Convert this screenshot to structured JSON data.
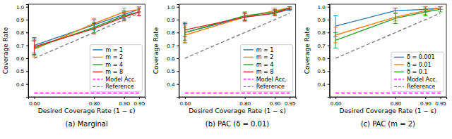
{
  "chart_data": [
    {
      "type": "line",
      "title": "(a) Marginal",
      "x_label": "Desired Coverage Rate (1 − ε)",
      "y_label": "Coverage Rate",
      "x": [
        0.6,
        0.8,
        0.9,
        0.95
      ],
      "xlim": [
        0.58,
        0.97
      ],
      "xticks": [
        {
          "value": 0.6,
          "label": "0.60"
        },
        {
          "value": 0.8,
          "label": "0.80"
        },
        {
          "value": 0.9,
          "label": "0.90"
        },
        {
          "value": 0.95,
          "label": "0.95"
        }
      ],
      "ylim": [
        0.3,
        1.02
      ],
      "yticks": [
        0.4,
        0.5,
        0.6,
        0.7,
        0.8,
        0.9,
        {
          "value": 1,
          "label": "1.0"
        }
      ],
      "legend": "lower right",
      "series": [
        {
          "name": "m = 1",
          "color": "#1f77b4",
          "values": [
            0.7,
            0.86,
            0.94,
            0.98
          ],
          "errors": [
            0.06,
            0.04,
            0.03,
            0.02
          ]
        },
        {
          "name": "m = 2",
          "color": "#ff7f0e",
          "values": [
            0.67,
            0.87,
            0.96,
            0.98
          ],
          "errors": [
            0.06,
            0.04,
            0.03,
            0.02
          ]
        },
        {
          "name": "m = 4",
          "color": "#2ca02c",
          "values": [
            0.68,
            0.84,
            0.93,
            0.96
          ],
          "errors": [
            0.06,
            0.04,
            0.03,
            0.03
          ]
        },
        {
          "name": "m = 8",
          "color": "#d62728",
          "values": [
            0.69,
            0.83,
            0.92,
            0.96
          ],
          "errors": [
            0.06,
            0.04,
            0.03,
            0.03
          ]
        },
        {
          "name": "Model Acc.",
          "color": "#ff00ff",
          "values": [
            0.33,
            0.33,
            0.33,
            0.33
          ],
          "line_style": "dashed"
        },
        {
          "name": "Reference",
          "color": "#808080",
          "values": [
            0.6,
            0.8,
            0.9,
            0.95
          ],
          "line_style": "dashed"
        }
      ]
    },
    {
      "type": "line",
      "title": "(b) PAC (δ = 0.01)",
      "x_label": "Desired Coverage Rate (1 − ε)",
      "y_label": "Coverage Rate",
      "x": [
        0.6,
        0.8,
        0.9,
        0.95
      ],
      "xlim": [
        0.58,
        0.97
      ],
      "xticks": [
        {
          "value": 0.6,
          "label": "0.60"
        },
        {
          "value": 0.8,
          "label": "0.80"
        },
        {
          "value": 0.9,
          "label": "0.90"
        },
        {
          "value": 0.95,
          "label": "0.95"
        }
      ],
      "ylim": [
        0.3,
        1.02
      ],
      "yticks": [
        0.4,
        0.5,
        0.6,
        0.7,
        0.8,
        0.9,
        {
          "value": 1,
          "label": "1.0"
        }
      ],
      "legend": "lower right",
      "series": [
        {
          "name": "m = 1",
          "color": "#1f77b4",
          "values": [
            0.8,
            0.92,
            0.95,
            0.98
          ],
          "errors": [
            0.08,
            0.03,
            0.02,
            0.01
          ]
        },
        {
          "name": "m = 2",
          "color": "#ff7f0e",
          "values": [
            0.78,
            0.92,
            0.97,
            0.99
          ],
          "errors": [
            0.06,
            0.03,
            0.02,
            0.01
          ]
        },
        {
          "name": "m = 4",
          "color": "#2ca02c",
          "values": [
            0.8,
            0.93,
            0.96,
            0.99
          ],
          "errors": [
            0.06,
            0.03,
            0.02,
            0.01
          ]
        },
        {
          "name": "m = 8",
          "color": "#d62728",
          "values": [
            0.82,
            0.92,
            0.95,
            0.99
          ],
          "errors": [
            0.05,
            0.03,
            0.02,
            0.01
          ]
        },
        {
          "name": "Model Acc.",
          "color": "#ff00ff",
          "values": [
            0.33,
            0.33,
            0.33,
            0.33
          ],
          "line_style": "dashed"
        },
        {
          "name": "Reference",
          "color": "#808080",
          "values": [
            0.6,
            0.8,
            0.9,
            0.95
          ],
          "line_style": "dashed"
        }
      ]
    },
    {
      "type": "line",
      "title": "(c) PAC (m = 2)",
      "x_label": "Desired Coverage Rate (1 − ε)",
      "y_label": "Coverage Rate",
      "x": [
        0.6,
        0.8,
        0.9,
        0.95
      ],
      "xlim": [
        0.58,
        0.97
      ],
      "xticks": [
        {
          "value": 0.6,
          "label": "0.60"
        },
        {
          "value": 0.8,
          "label": "0.80"
        },
        {
          "value": 0.9,
          "label": "0.90"
        },
        {
          "value": 0.95,
          "label": "0.95"
        }
      ],
      "ylim": [
        0.3,
        1.02
      ],
      "yticks": [
        0.4,
        0.5,
        0.6,
        0.7,
        0.8,
        0.9,
        {
          "value": 1,
          "label": "1.0"
        }
      ],
      "legend": "lower right",
      "series": [
        {
          "name": "δ = 0.001",
          "color": "#1f77b4",
          "values": [
            0.85,
            0.97,
            0.98,
            0.99
          ],
          "errors": [
            0.08,
            0.02,
            0.02,
            0.01
          ]
        },
        {
          "name": "δ = 0.01",
          "color": "#ff7f0e",
          "values": [
            0.78,
            0.92,
            0.97,
            0.99
          ],
          "errors": [
            0.06,
            0.03,
            0.03,
            0.01
          ]
        },
        {
          "name": "δ = 0.1",
          "color": "#2ca02c",
          "values": [
            0.74,
            0.91,
            0.96,
            0.98
          ],
          "errors": [
            0.06,
            0.04,
            0.03,
            0.02
          ]
        },
        {
          "name": "Model Acc.",
          "color": "#ff00ff",
          "values": [
            0.33,
            0.33,
            0.33,
            0.33
          ],
          "line_style": "dashed"
        },
        {
          "name": "Reference",
          "color": "#808080",
          "values": [
            0.6,
            0.8,
            0.9,
            0.95
          ],
          "line_style": "dashed"
        }
      ]
    }
  ]
}
